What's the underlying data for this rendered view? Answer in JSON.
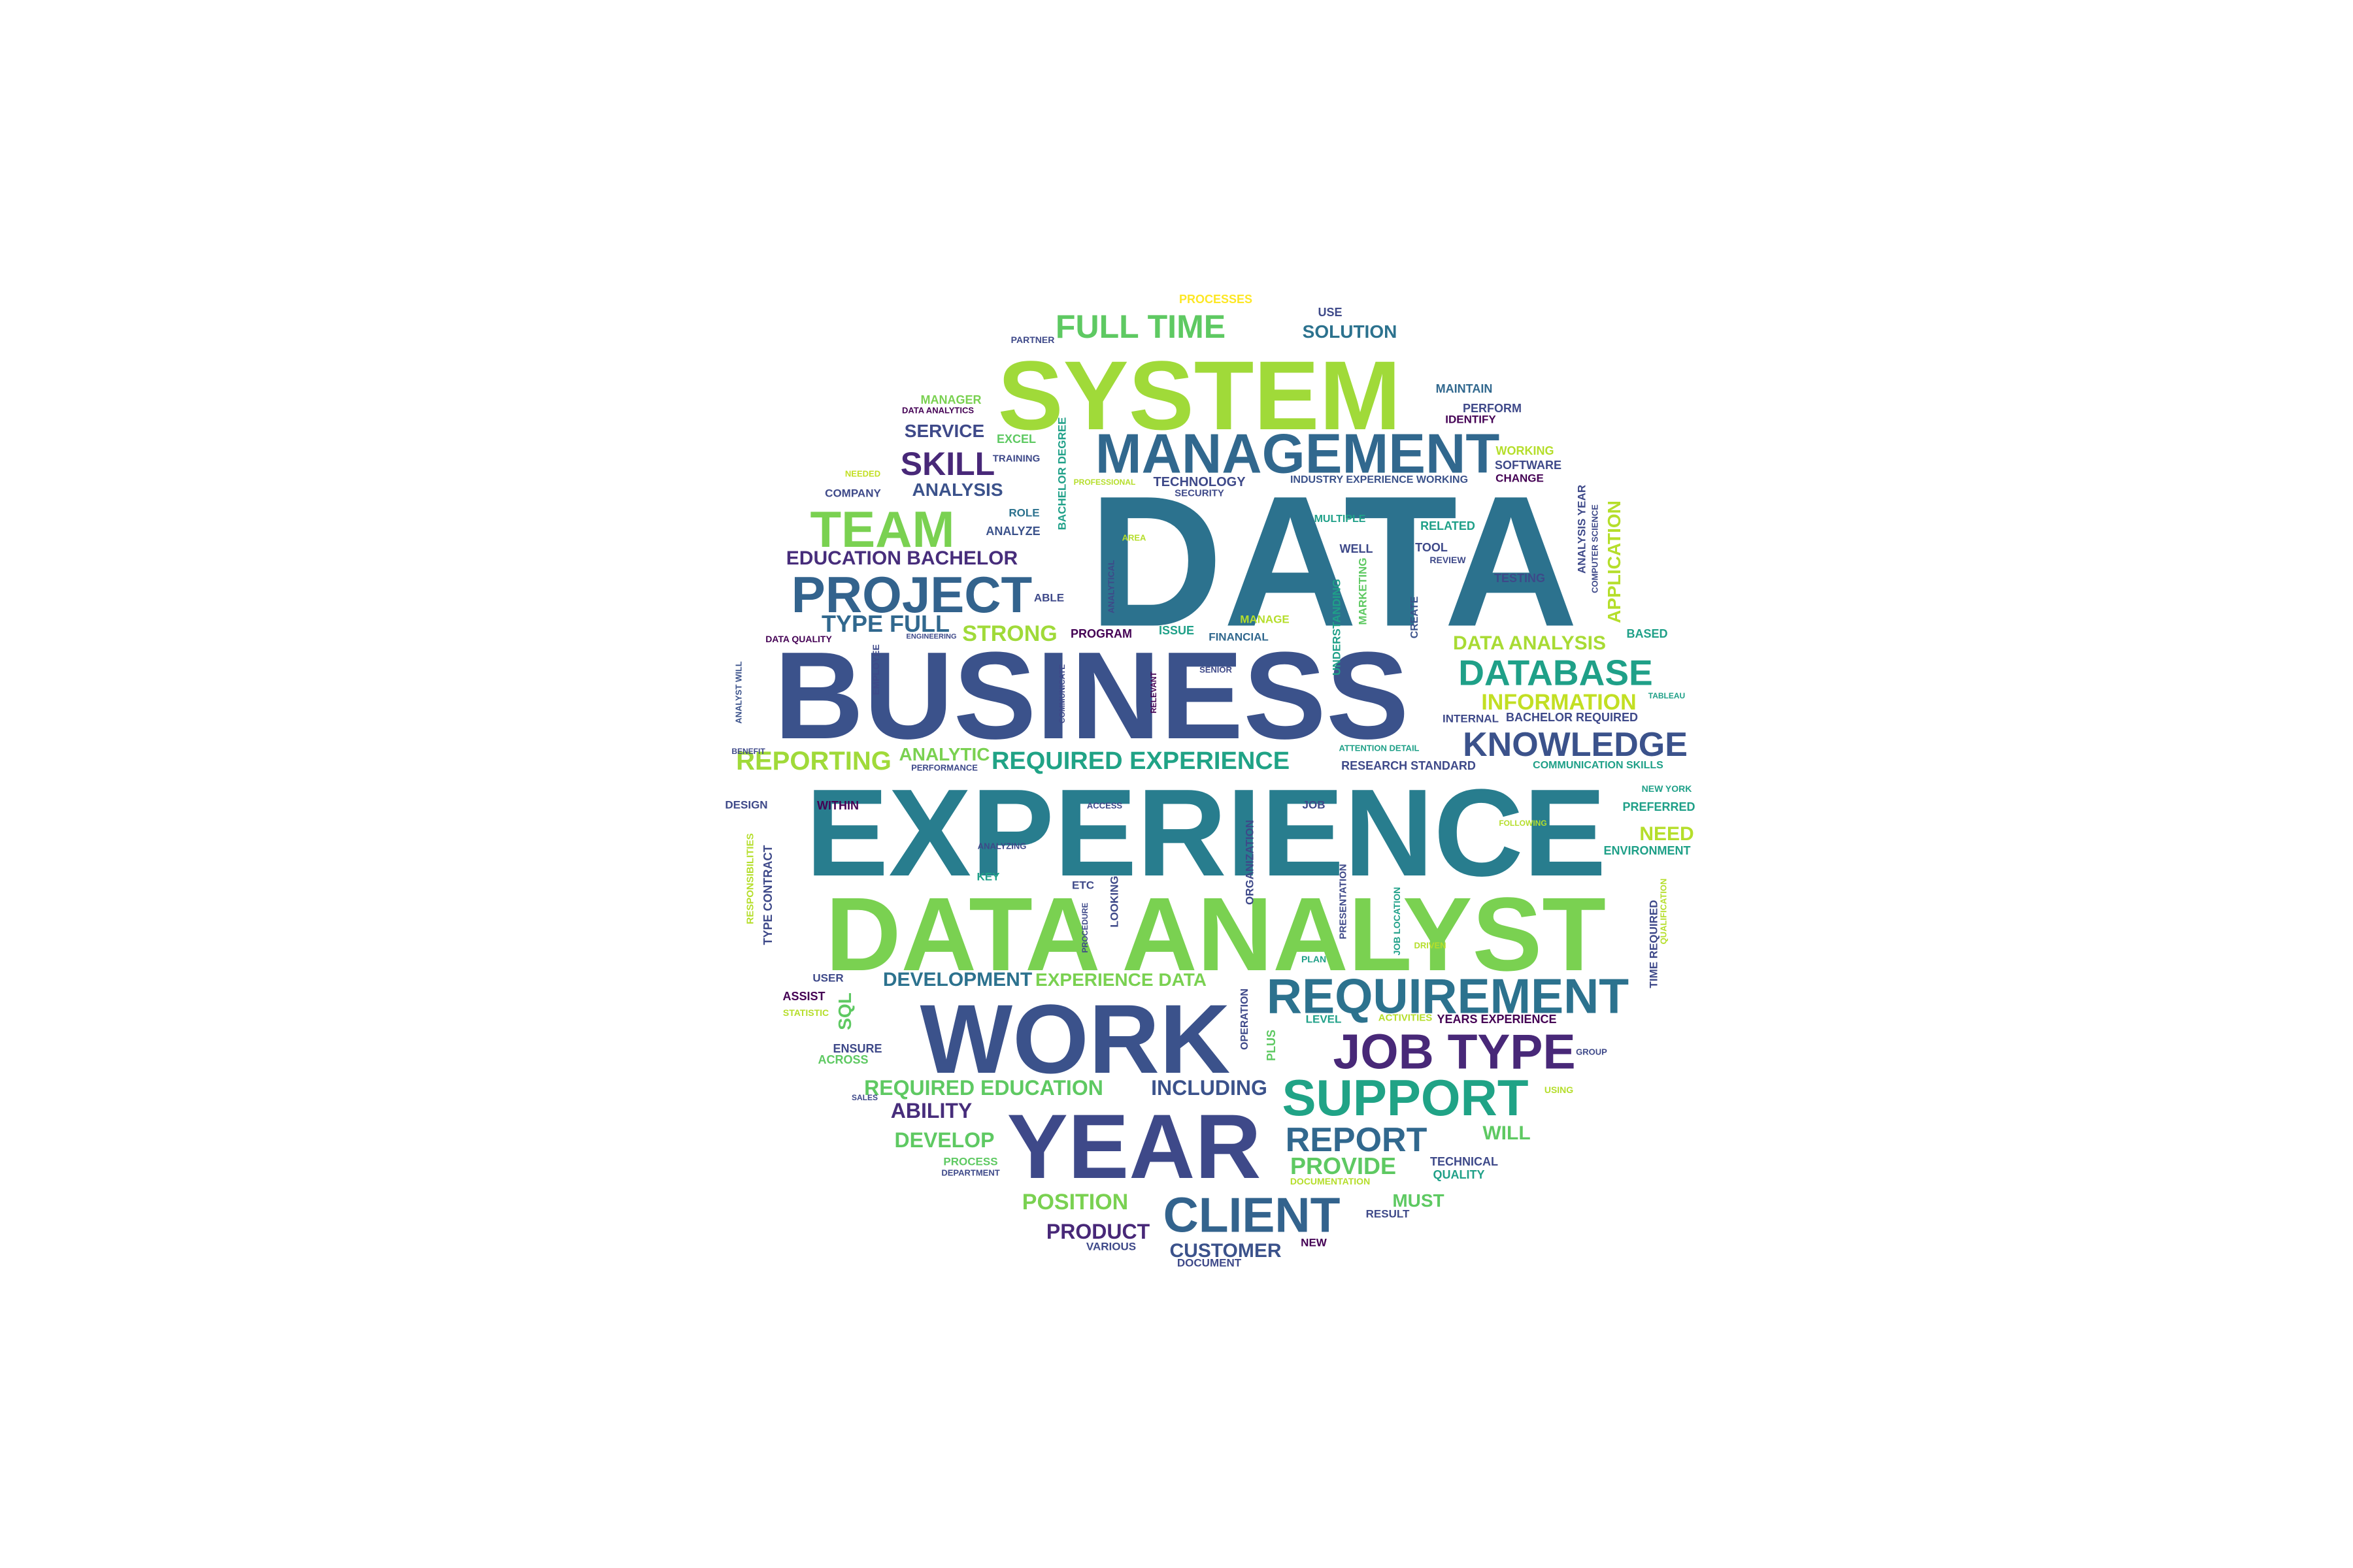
{
  "wordcloud": {
    "words": [
      {
        "text": "DATA",
        "color": "#2c728e"
      },
      {
        "text": "BUSINESS",
        "color": "#3b528b"
      },
      {
        "text": "EXPERIENCE",
        "color": "#287d8e"
      },
      {
        "text": "DATA ANALYST",
        "color": "#7ad151"
      },
      {
        "text": "SYSTEM",
        "color": "#a0da39"
      },
      {
        "text": "WORK",
        "color": "#3b528b"
      },
      {
        "text": "YEAR",
        "color": "#3e4989"
      },
      {
        "text": "MANAGEMENT",
        "color": "#31688e"
      },
      {
        "text": "REQUIREMENT",
        "color": "#2c728e"
      },
      {
        "text": "PROJECT",
        "color": "#33638d"
      },
      {
        "text": "SUPPORT",
        "color": "#20a386"
      },
      {
        "text": "JOB TYPE",
        "color": "#482878"
      },
      {
        "text": "CLIENT",
        "color": "#33638d"
      },
      {
        "text": "TEAM",
        "color": "#7ad151"
      },
      {
        "text": "DATABASE",
        "color": "#1fa088"
      },
      {
        "text": "KNOWLEDGE",
        "color": "#3b528b"
      },
      {
        "text": "REPORT",
        "color": "#31688e"
      },
      {
        "text": "FULL TIME",
        "color": "#5ec962"
      },
      {
        "text": "SKILL",
        "color": "#482878"
      },
      {
        "text": "REQUIRED EXPERIENCE",
        "color": "#20a386"
      },
      {
        "text": "REPORTING",
        "color": "#a0da39"
      },
      {
        "text": "PROVIDE",
        "color": "#5ec962"
      },
      {
        "text": "INFORMATION",
        "color": "#c2df23"
      },
      {
        "text": "DATA ANALYSIS",
        "color": "#a8db34"
      },
      {
        "text": "EDUCATION BACHELOR",
        "color": "#472d7b"
      },
      {
        "text": "TYPE FULL",
        "color": "#31688e"
      },
      {
        "text": "STRONG",
        "color": "#a0da39"
      },
      {
        "text": "REQUIRED EDUCATION",
        "color": "#5ec962"
      },
      {
        "text": "INCLUDING",
        "color": "#3b528b"
      },
      {
        "text": "DEVELOPMENT",
        "color": "#2c728e"
      },
      {
        "text": "EXPERIENCE DATA",
        "color": "#7ad151"
      },
      {
        "text": "POSITION",
        "color": "#7ad151"
      },
      {
        "text": "PRODUCT",
        "color": "#482878"
      },
      {
        "text": "CUSTOMER",
        "color": "#3b528b"
      },
      {
        "text": "ABILITY",
        "color": "#472d7b"
      },
      {
        "text": "DEVELOP",
        "color": "#5ec962"
      },
      {
        "text": "SOLUTION",
        "color": "#2c728e"
      },
      {
        "text": "SERVICE",
        "color": "#3e4989"
      },
      {
        "text": "ANALYSIS",
        "color": "#3b528b"
      },
      {
        "text": "ANALYTIC",
        "color": "#7ad151"
      },
      {
        "text": "NEED",
        "color": "#b5de2b"
      },
      {
        "text": "WILL",
        "color": "#5ec962"
      },
      {
        "text": "MUST",
        "color": "#5ec962"
      },
      {
        "text": "PROCESSES",
        "color": "#fde725"
      },
      {
        "text": "USE",
        "color": "#3e4989"
      },
      {
        "text": "PARTNER",
        "color": "#3e4989"
      },
      {
        "text": "MANAGER",
        "color": "#7ad151"
      },
      {
        "text": "DATA ANALYTICS",
        "color": "#440154"
      },
      {
        "text": "EXCEL",
        "color": "#5ec962"
      },
      {
        "text": "NEEDED",
        "color": "#c2df23"
      },
      {
        "text": "TRAINING",
        "color": "#3e4989"
      },
      {
        "text": "COMPANY",
        "color": "#3e4989"
      },
      {
        "text": "ROLE",
        "color": "#2c728e"
      },
      {
        "text": "ANALYZE",
        "color": "#3b528b"
      },
      {
        "text": "BACHELOR DEGREE",
        "color": "#1fa088"
      },
      {
        "text": "MAINTAIN",
        "color": "#31688e"
      },
      {
        "text": "PERFORM",
        "color": "#3e4989"
      },
      {
        "text": "IDENTIFY",
        "color": "#440154"
      },
      {
        "text": "WORKING",
        "color": "#b5de2b"
      },
      {
        "text": "SOFTWARE",
        "color": "#3e4989"
      },
      {
        "text": "CHANGE",
        "color": "#440154"
      },
      {
        "text": "TECHNOLOGY",
        "color": "#3e4989"
      },
      {
        "text": "SECURITY",
        "color": "#3e4989"
      },
      {
        "text": "PROFESSIONAL",
        "color": "#b5de2b"
      },
      {
        "text": "INDUSTRY EXPERIENCE WORKING",
        "color": "#3b528b"
      },
      {
        "text": "MULTIPLE",
        "color": "#1fa088"
      },
      {
        "text": "RELATED",
        "color": "#1fa088"
      },
      {
        "text": "WELL",
        "color": "#3e4989"
      },
      {
        "text": "TOOL",
        "color": "#3e4989"
      },
      {
        "text": "REVIEW",
        "color": "#3e4989"
      },
      {
        "text": "ANALYTICAL",
        "color": "#3e4989"
      },
      {
        "text": "AREA",
        "color": "#b5de2b"
      },
      {
        "text": "ABLE",
        "color": "#3e4989"
      },
      {
        "text": "MARKETING",
        "color": "#5ec962"
      },
      {
        "text": "UNDERSTANDING",
        "color": "#1fa088"
      },
      {
        "text": "CREATE",
        "color": "#3b528b"
      },
      {
        "text": "TESTING",
        "color": "#3e4989"
      },
      {
        "text": "BASED",
        "color": "#1fa088"
      },
      {
        "text": "APPLICATION",
        "color": "#b5de2b"
      },
      {
        "text": "ANALYSIS YEAR",
        "color": "#3e4989"
      },
      {
        "text": "COMPUTER SCIENCE",
        "color": "#3e4989"
      },
      {
        "text": "DATA QUALITY",
        "color": "#440154"
      },
      {
        "text": "ENGINEERING",
        "color": "#3e4989"
      },
      {
        "text": "PROGRAM",
        "color": "#440154"
      },
      {
        "text": "ISSUE",
        "color": "#1fa088"
      },
      {
        "text": "MANAGE",
        "color": "#b5de2b"
      },
      {
        "text": "FINANCIAL",
        "color": "#31688e"
      },
      {
        "text": "EMPLOYEE",
        "color": "#3e4989"
      },
      {
        "text": "ANALYST WILL",
        "color": "#3b528b"
      },
      {
        "text": "COMMUNICATE",
        "color": "#3e4989"
      },
      {
        "text": "RELEVANT",
        "color": "#440154"
      },
      {
        "text": "SENIOR",
        "color": "#3e4989"
      },
      {
        "text": "TABLEAU",
        "color": "#1fa088"
      },
      {
        "text": "INTERNAL",
        "color": "#3e4989"
      },
      {
        "text": "BACHELOR REQUIRED",
        "color": "#3e4989"
      },
      {
        "text": "ATTENTION DETAIL",
        "color": "#1fa088"
      },
      {
        "text": "RESEARCH STANDARD",
        "color": "#3e4989"
      },
      {
        "text": "COMMUNICATION SKILLS",
        "color": "#1fa088"
      },
      {
        "text": "BENEFIT",
        "color": "#3e4989"
      },
      {
        "text": "PERFORMANCE",
        "color": "#3e4989"
      },
      {
        "text": "NEW YORK",
        "color": "#1fa088"
      },
      {
        "text": "DESIGN",
        "color": "#3e4989"
      },
      {
        "text": "WITHIN",
        "color": "#440154"
      },
      {
        "text": "ACCESS",
        "color": "#3e4989"
      },
      {
        "text": "JOB",
        "color": "#3e4989"
      },
      {
        "text": "PREFERRED",
        "color": "#1fa088"
      },
      {
        "text": "FOLLOWING",
        "color": "#b5de2b"
      },
      {
        "text": "ENVIRONMENT",
        "color": "#1fa088"
      },
      {
        "text": "TYPE CONTRACT",
        "color": "#3e4989"
      },
      {
        "text": "RESPONSIBILITIES",
        "color": "#b5de2b"
      },
      {
        "text": "ANALYZING",
        "color": "#3e4989"
      },
      {
        "text": "KEY",
        "color": "#1fa088"
      },
      {
        "text": "ETC",
        "color": "#3e4989"
      },
      {
        "text": "LOOKING",
        "color": "#3e4989"
      },
      {
        "text": "PROCEDURE",
        "color": "#3e4989"
      },
      {
        "text": "ORGANIZATION",
        "color": "#3e4989"
      },
      {
        "text": "PRESENTATION",
        "color": "#3e4989"
      },
      {
        "text": "JOB LOCATION",
        "color": "#1fa088"
      },
      {
        "text": "PLAN",
        "color": "#1fa088"
      },
      {
        "text": "DRIVEN",
        "color": "#b5de2b"
      },
      {
        "text": "TIME REQUIRED",
        "color": "#3e4989"
      },
      {
        "text": "QUALIFICATION",
        "color": "#b5de2b"
      },
      {
        "text": "USER",
        "color": "#3e4989"
      },
      {
        "text": "SQL",
        "color": "#5ec962"
      },
      {
        "text": "ASSIST",
        "color": "#440154"
      },
      {
        "text": "STATISTIC",
        "color": "#b5de2b"
      },
      {
        "text": "ENSURE",
        "color": "#3e4989"
      },
      {
        "text": "ACROSS",
        "color": "#5ec962"
      },
      {
        "text": "SALES",
        "color": "#3e4989"
      },
      {
        "text": "OPERATION",
        "color": "#3e4989"
      },
      {
        "text": "PLUS",
        "color": "#5ec962"
      },
      {
        "text": "LEVEL",
        "color": "#1fa088"
      },
      {
        "text": "ACTIVITIES",
        "color": "#b5de2b"
      },
      {
        "text": "YEARS EXPERIENCE",
        "color": "#440154"
      },
      {
        "text": "GROUP",
        "color": "#3e4989"
      },
      {
        "text": "USING",
        "color": "#b5de2b"
      },
      {
        "text": "TECHNICAL",
        "color": "#3e4989"
      },
      {
        "text": "QUALITY",
        "color": "#1fa088"
      },
      {
        "text": "PROCESS",
        "color": "#5ec962"
      },
      {
        "text": "DEPARTMENT",
        "color": "#3e4989"
      },
      {
        "text": "DOCUMENTATION",
        "color": "#b5de2b"
      },
      {
        "text": "RESULT",
        "color": "#3e4989"
      },
      {
        "text": "NEW",
        "color": "#440154"
      },
      {
        "text": "VARIOUS",
        "color": "#3e4989"
      },
      {
        "text": "DOCUMENT",
        "color": "#3e4989"
      }
    ]
  }
}
